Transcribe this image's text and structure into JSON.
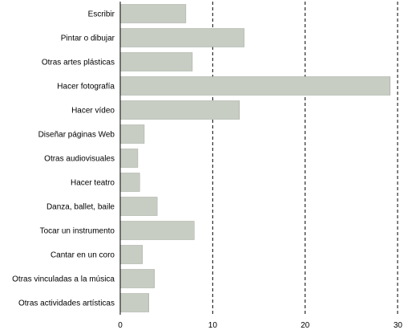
{
  "chart_data": {
    "type": "bar",
    "orientation": "horizontal",
    "categories": [
      "Escribir",
      "Pintar o dibujar",
      "Otras artes plásticas",
      "Hacer fotografía",
      "Hacer vídeo",
      "Diseñar páginas Web",
      "Otras audiovisuales",
      "Hacer teatro",
      "Danza, ballet,  baile",
      "Tocar un instrumento",
      "Cantar en un coro",
      "Otras vinculadas a la música",
      "Otras actividades artísticas"
    ],
    "values": [
      7.1,
      13.4,
      7.8,
      29.2,
      12.9,
      2.6,
      1.9,
      2.1,
      4.0,
      8.0,
      2.4,
      3.7,
      3.1
    ],
    "xlim": [
      0,
      30
    ],
    "xticks": [
      0,
      10,
      20,
      30
    ],
    "title": "",
    "xlabel": "",
    "ylabel": "",
    "grid": "vertical dashed",
    "bar_color": "#c8cdc4",
    "bar_stroke": "#9fa69b",
    "legend": "none"
  }
}
